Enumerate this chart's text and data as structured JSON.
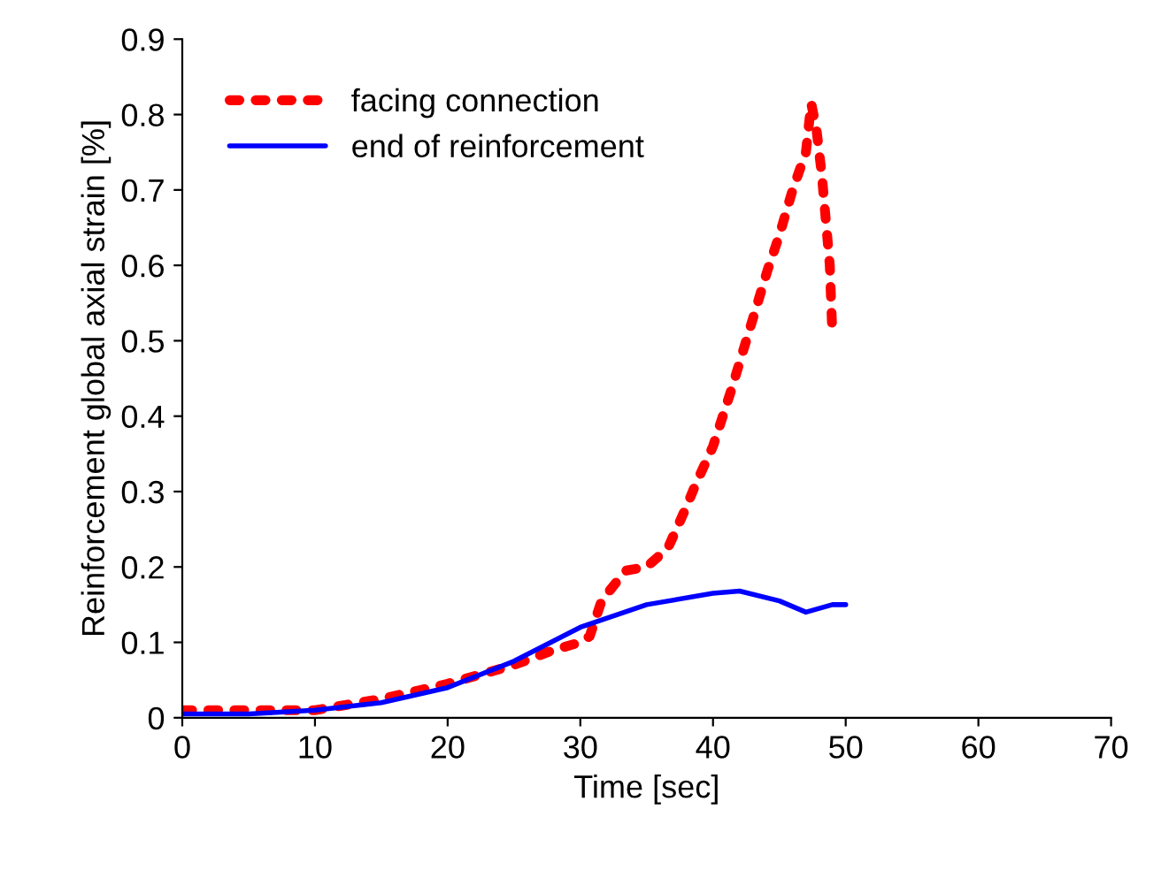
{
  "chart_data": {
    "type": "line",
    "xlabel": "Time [sec]",
    "ylabel": "Reinforcement global axial strain [%]",
    "xlim": [
      0,
      70
    ],
    "xticks": [
      0,
      10,
      20,
      30,
      40,
      50,
      60,
      70
    ],
    "ylim": [
      0,
      0.9
    ],
    "yticks": [
      0,
      0.1,
      0.2,
      0.3,
      0.4,
      0.5,
      0.6,
      0.7,
      0.8,
      0.9
    ],
    "grid": false,
    "legend": "top left",
    "series": [
      {
        "name": "facing connection",
        "color": "#ff0000",
        "line_style": "dotted",
        "x": [
          0,
          5,
          10,
          15,
          20,
          25,
          28,
          30,
          30.7,
          31.6,
          33.4,
          35,
          36.6,
          38,
          38.7,
          40,
          41.4,
          42.5,
          44.1,
          45,
          46,
          47,
          47.4,
          47.8,
          48.2,
          48.5,
          48.8,
          49
        ],
        "values": [
          0.01,
          0.01,
          0.01,
          0.025,
          0.045,
          0.07,
          0.09,
          0.1,
          0.108,
          0.155,
          0.195,
          0.2,
          0.225,
          0.28,
          0.31,
          0.36,
          0.436,
          0.5,
          0.593,
          0.64,
          0.7,
          0.75,
          0.815,
          0.78,
          0.72,
          0.66,
          0.6,
          0.506
        ]
      },
      {
        "name": "end of reinforcement",
        "color": "#0000ff",
        "line_style": "solid",
        "x": [
          0,
          5,
          10,
          15,
          20,
          25,
          30,
          35,
          40,
          42,
          45,
          47,
          49,
          50
        ],
        "values": [
          0.005,
          0.005,
          0.01,
          0.02,
          0.04,
          0.075,
          0.12,
          0.15,
          0.165,
          0.168,
          0.155,
          0.14,
          0.15,
          0.15
        ]
      }
    ]
  }
}
